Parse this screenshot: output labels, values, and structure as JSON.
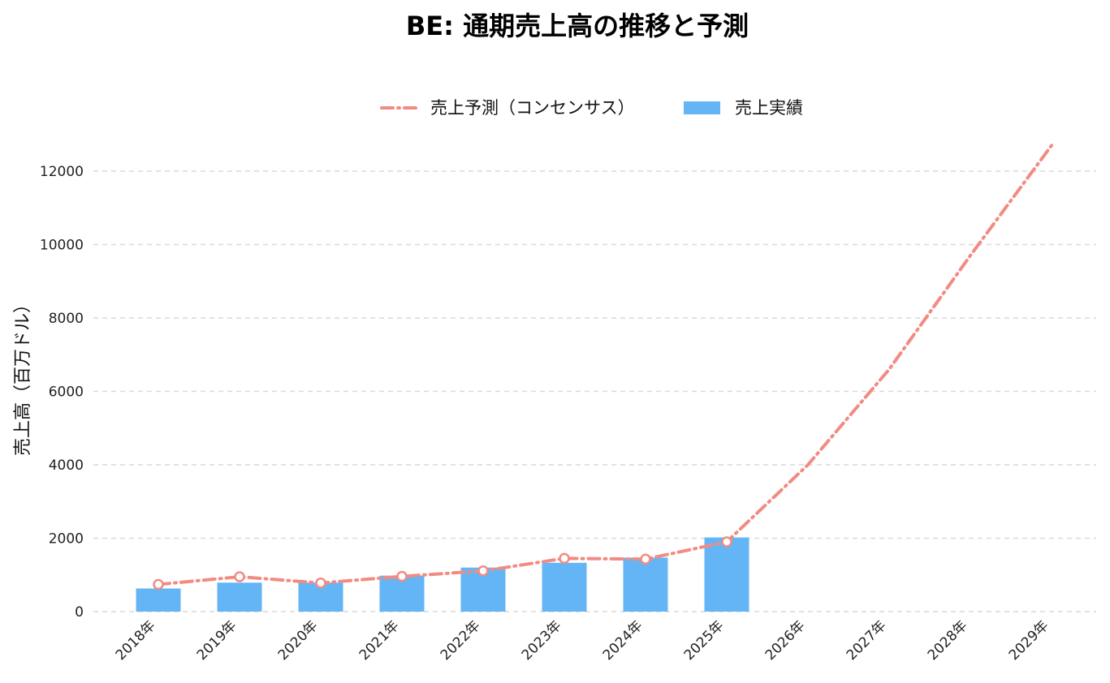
{
  "chart_data": {
    "type": "bar",
    "title": "BE: 通期売上高の推移と予測",
    "xlabel": "",
    "ylabel": "売上高（百万ドル）",
    "categories": [
      "2018年",
      "2019年",
      "2020年",
      "2021年",
      "2022年",
      "2023年",
      "2024年",
      "2025年",
      "2026年",
      "2027年",
      "2028年",
      "2029年"
    ],
    "y_ticks": [
      "0",
      "2000",
      "4000",
      "6000",
      "8000",
      "10000",
      "12000"
    ],
    "ylim": [
      0,
      13000
    ],
    "grid": true,
    "legend": "top-center",
    "series": [
      {
        "name": "売上予測（コンセンサス）",
        "kind": "line",
        "style": "dash-dot",
        "color": "#f28b82",
        "values": [
          740,
          950,
          780,
          960,
          1110,
          1450,
          1430,
          1900,
          4000,
          6600,
          9700,
          12700
        ]
      },
      {
        "name": "売上実績",
        "kind": "bar",
        "color": "#64b5f6",
        "values": [
          630,
          790,
          790,
          980,
          1200,
          1330,
          1470,
          2020,
          null,
          null,
          null,
          null
        ]
      }
    ]
  }
}
